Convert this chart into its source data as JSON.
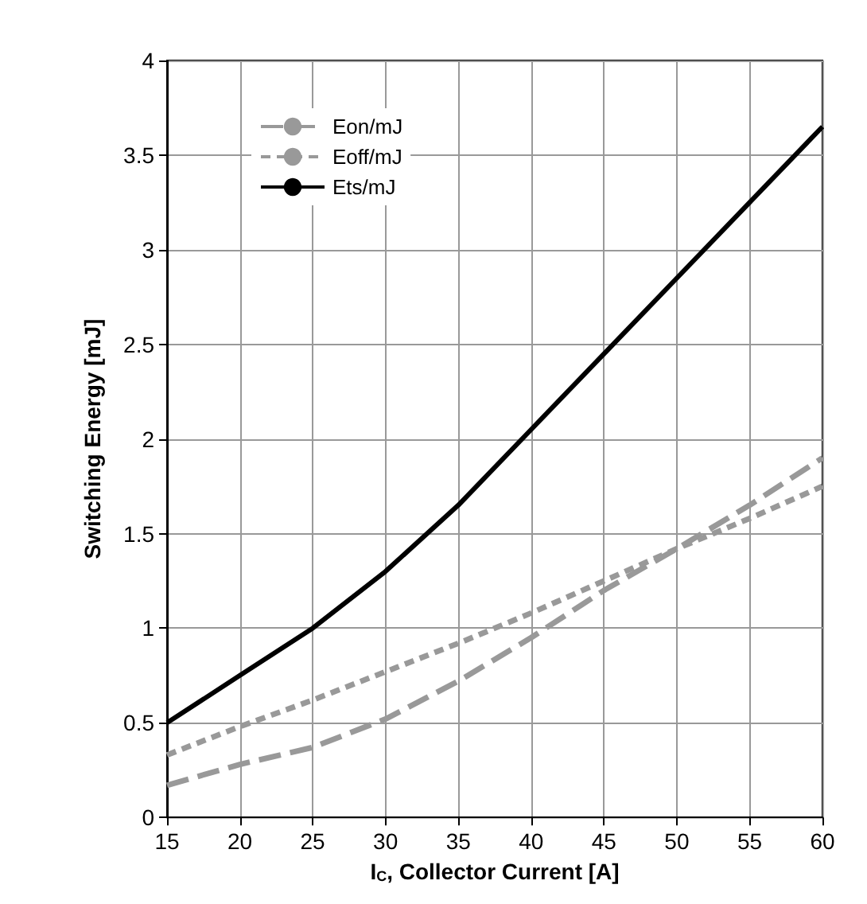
{
  "chart_data": {
    "type": "line",
    "xlabel": "I$_{C}$, Collector Current [A]",
    "ylabel": "Switching Energy [mJ]",
    "x": [
      15,
      20,
      25,
      30,
      35,
      40,
      45,
      50,
      55,
      60
    ],
    "series": [
      {
        "name": "Eon/mJ",
        "color": "#999999",
        "line_style": "dashed",
        "values": [
          0.17,
          0.28,
          0.37,
          0.52,
          0.72,
          0.95,
          1.2,
          1.42,
          1.65,
          1.9
        ]
      },
      {
        "name": "Eoff/mJ",
        "color": "#999999",
        "line_style": "dotted",
        "values": [
          0.33,
          0.48,
          0.62,
          0.77,
          0.92,
          1.08,
          1.25,
          1.42,
          1.58,
          1.75
        ]
      },
      {
        "name": "Ets/mJ",
        "color": "#000000",
        "line_style": "solid",
        "values": [
          0.5,
          0.75,
          1.0,
          1.3,
          1.65,
          2.05,
          2.45,
          2.85,
          3.25,
          3.65
        ]
      }
    ],
    "xlim": [
      15,
      60
    ],
    "xticks": [
      15,
      20,
      25,
      30,
      35,
      40,
      45,
      50,
      55,
      60
    ],
    "ylim": [
      0,
      4
    ],
    "yticks": [
      0,
      0.5,
      1,
      1.5,
      2,
      2.5,
      3,
      3.5,
      4
    ],
    "grid": true,
    "legend": "top left",
    "marker": "none"
  }
}
